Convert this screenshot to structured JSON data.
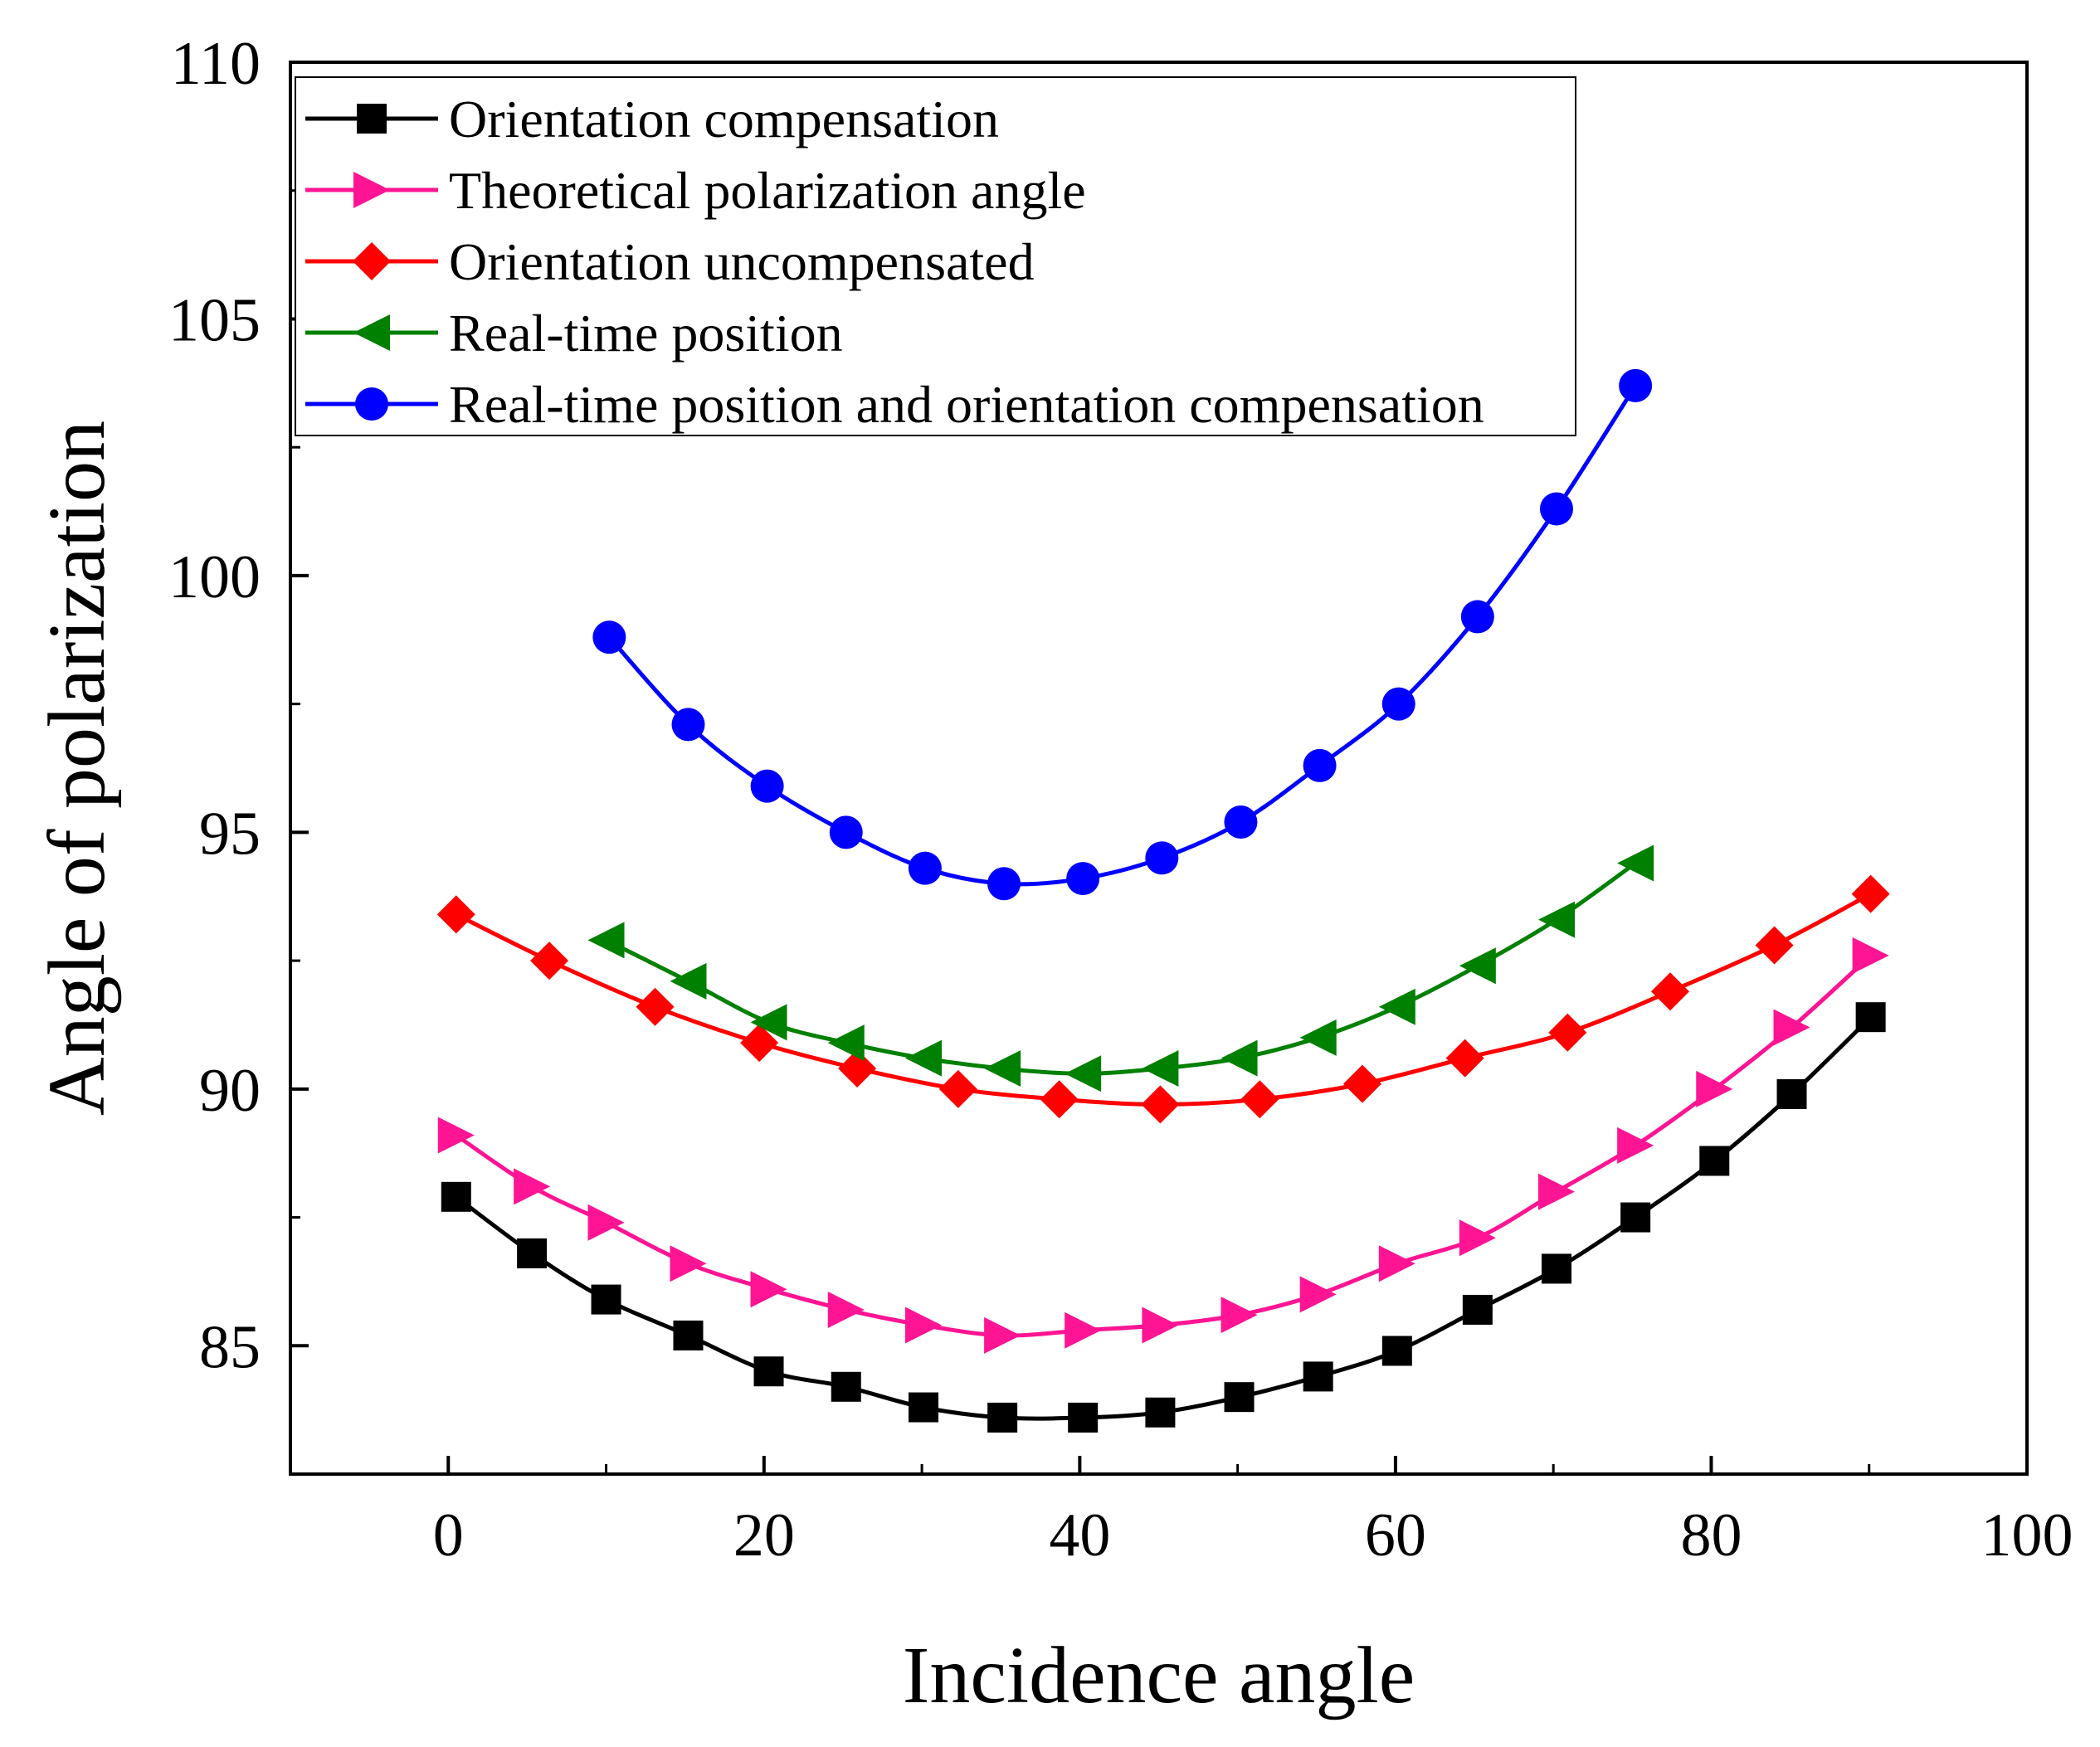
{
  "chart_data": {
    "type": "line",
    "xlabel": "Incidence angle",
    "ylabel": "Angle of polarization",
    "xlim": [
      -10,
      100
    ],
    "ylim": [
      82.5,
      110
    ],
    "xticks": [
      0,
      20,
      40,
      60,
      80,
      100
    ],
    "yticks": [
      85,
      90,
      95,
      100,
      105,
      110
    ],
    "grid": false,
    "legend_position": "top-left",
    "series": [
      {
        "name": "Orientation compensation",
        "color": "#000000",
        "marker": "square",
        "x": [
          0.5,
          5.3,
          10,
          15.2,
          20.3,
          25.2,
          30.1,
          35.1,
          40.2,
          45.1,
          50.1,
          55.1,
          60.1,
          65.2,
          70.2,
          75.2,
          80.2,
          85.1,
          90.1
        ],
        "y": [
          87.9,
          86.8,
          85.9,
          85.2,
          84.5,
          84.2,
          83.8,
          83.6,
          83.6,
          83.7,
          84.0,
          84.4,
          84.9,
          85.7,
          86.5,
          87.5,
          88.6,
          89.9,
          91.4
        ]
      },
      {
        "name": "Theoretical polarization angle",
        "color": "#ff1493",
        "marker": "triangle-right",
        "x": [
          0.5,
          5.3,
          10,
          15.2,
          20.3,
          25.2,
          30.1,
          35.1,
          40.2,
          45.1,
          50.1,
          55.1,
          60.1,
          65.2,
          70.2,
          75.2,
          80.2,
          85.1,
          90.1
        ],
        "y": [
          89.1,
          88.1,
          87.4,
          86.6,
          86.1,
          85.7,
          85.4,
          85.2,
          85.3,
          85.4,
          85.6,
          86.0,
          86.6,
          87.1,
          88.0,
          88.9,
          90.0,
          91.2,
          92.6
        ]
      },
      {
        "name": "Orientation uncompensated",
        "color": "#ff0000",
        "marker": "diamond",
        "x": [
          0.5,
          6.4,
          13.1,
          19.7,
          25.9,
          32.3,
          38.7,
          45.1,
          51.4,
          57.9,
          64.4,
          70.9,
          77.4,
          84,
          90.1
        ],
        "y": [
          93.4,
          92.5,
          91.6,
          90.9,
          90.4,
          90.0,
          89.8,
          89.7,
          89.8,
          90.1,
          90.6,
          91.1,
          91.9,
          92.8,
          93.8
        ]
      },
      {
        "name": "Real-time position",
        "color": "#008000",
        "marker": "triangle-left",
        "x": [
          10,
          15.2,
          20.3,
          25.2,
          30.1,
          35.1,
          40.2,
          45.1,
          50.1,
          55.1,
          60.1,
          65.2,
          70.2,
          75.2
        ],
        "y": [
          92.9,
          92.1,
          91.3,
          90.9,
          90.6,
          90.4,
          90.3,
          90.4,
          90.6,
          91.0,
          91.6,
          92.4,
          93.3,
          94.4
        ]
      },
      {
        "name": "Real-time position and orientation compensation",
        "color": "#0000ff",
        "marker": "circle",
        "x": [
          10.2,
          15.2,
          20.2,
          25.2,
          30.2,
          35.2,
          40.2,
          45.2,
          50.2,
          55.2,
          60.2,
          65.2,
          70.2,
          75.2
        ],
        "y": [
          98.8,
          97.1,
          95.9,
          95.0,
          94.3,
          94.0,
          94.1,
          94.5,
          95.2,
          96.3,
          97.5,
          99.2,
          101.3,
          103.7
        ]
      }
    ]
  }
}
